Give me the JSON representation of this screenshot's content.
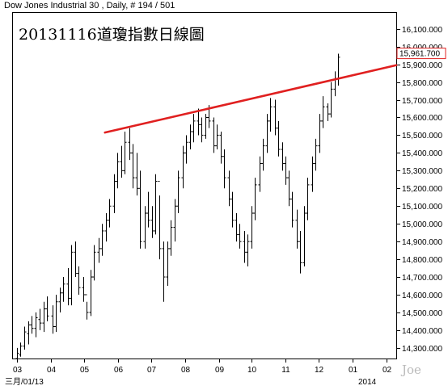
{
  "chart_data": {
    "type": "ohlc",
    "header": "Dow Jones Industrial 30 , Daily, # 194 / 501",
    "title": "20131116道瓊指數日線圖",
    "last_value_label": "15,961.700",
    "last_value": 15961.7,
    "watermark": "Joe",
    "y_axis": {
      "position": "right",
      "min": 14240,
      "max": 16190,
      "ticks": [
        14300,
        14400,
        14500,
        14600,
        14700,
        14800,
        14900,
        15000,
        15100,
        15200,
        15300,
        15400,
        15500,
        15600,
        15700,
        15800,
        15900,
        16000,
        16100
      ],
      "tick_labels": [
        "14,300.000",
        "14,400.000",
        "14,500.000",
        "14,600.000",
        "14,700.000",
        "14,800.000",
        "14,900.000",
        "15,000.000",
        "15,100.000",
        "15,200.000",
        "15,300.000",
        "15,400.000",
        "15,500.000",
        "15,600.000",
        "15,700.000",
        "15,800.000",
        "15,900.000",
        "16,000.000",
        "16,100.000"
      ]
    },
    "x_axis": {
      "tick_labels": [
        "03",
        "04",
        "05",
        "06",
        "07",
        "08",
        "09",
        "10",
        "11",
        "12",
        "01",
        "02"
      ],
      "tick_dates": [
        "2013-03-01",
        "2013-04-01",
        "2013-05-01",
        "2013-06-01",
        "2013-07-01",
        "2013-08-01",
        "2013-09-01",
        "2013-10-01",
        "2013-11-01",
        "2013-12-01",
        "2014-01-01",
        "2014-02-01"
      ],
      "start_label": "三月/01/13",
      "year_label": "2014",
      "range": [
        "2013-02-25",
        "2014-02-10"
      ]
    },
    "series": [
      {
        "type": "ohlc",
        "points": [
          [
            "2013-03-01",
            14240,
            14300,
            14240,
            14270
          ],
          [
            "2013-03-04",
            14260,
            14330,
            14250,
            14310
          ],
          [
            "2013-03-07",
            14310,
            14420,
            14290,
            14390
          ],
          [
            "2013-03-11",
            14380,
            14450,
            14320,
            14430
          ],
          [
            "2013-03-14",
            14430,
            14480,
            14380,
            14410
          ],
          [
            "2013-03-18",
            14410,
            14500,
            14360,
            14470
          ],
          [
            "2013-03-21",
            14460,
            14520,
            14400,
            14440
          ],
          [
            "2013-03-25",
            14440,
            14560,
            14390,
            14520
          ],
          [
            "2013-03-28",
            14520,
            14590,
            14450,
            14480
          ],
          [
            "2013-04-02",
            14480,
            14540,
            14380,
            14420
          ],
          [
            "2013-04-05",
            14420,
            14600,
            14390,
            14560
          ],
          [
            "2013-04-09",
            14560,
            14640,
            14500,
            14610
          ],
          [
            "2013-04-12",
            14610,
            14700,
            14560,
            14660
          ],
          [
            "2013-04-16",
            14660,
            14750,
            14540,
            14580
          ],
          [
            "2013-04-19",
            14580,
            14880,
            14540,
            14840
          ],
          [
            "2013-04-23",
            14840,
            14900,
            14700,
            14720
          ],
          [
            "2013-04-26",
            14720,
            14760,
            14600,
            14640
          ],
          [
            "2013-04-30",
            14640,
            14700,
            14560,
            14600
          ],
          [
            "2013-05-03",
            14600,
            14560,
            14460,
            14500
          ],
          [
            "2013-05-07",
            14500,
            14740,
            14480,
            14700
          ],
          [
            "2013-05-10",
            14700,
            14880,
            14680,
            14840
          ],
          [
            "2013-05-14",
            14840,
            14920,
            14780,
            14860
          ],
          [
            "2013-05-17",
            14860,
            15000,
            14820,
            14960
          ],
          [
            "2013-05-21",
            14960,
            15060,
            14900,
            15020
          ],
          [
            "2013-05-24",
            15020,
            15140,
            14980,
            15100
          ],
          [
            "2013-05-28",
            15100,
            15280,
            15060,
            15240
          ],
          [
            "2013-05-31",
            15240,
            15400,
            15200,
            15350
          ],
          [
            "2013-06-04",
            15350,
            15440,
            15260,
            15300
          ],
          [
            "2013-06-07",
            15300,
            15520,
            15280,
            15460
          ],
          [
            "2013-06-11",
            15460,
            15540,
            15360,
            15400
          ],
          [
            "2013-06-14",
            15400,
            15450,
            15200,
            15260
          ],
          [
            "2013-06-18",
            15260,
            15400,
            15160,
            15200
          ],
          [
            "2013-06-21",
            15200,
            15300,
            14860,
            14900
          ],
          [
            "2013-06-25",
            14900,
            15100,
            14860,
            15060
          ],
          [
            "2013-06-28",
            15060,
            15180,
            14980,
            15020
          ],
          [
            "2013-07-02",
            15020,
            15100,
            14920,
            14960
          ],
          [
            "2013-07-05",
            14960,
            15280,
            14940,
            15240
          ],
          [
            "2013-07-09",
            15240,
            15160,
            14800,
            14860
          ],
          [
            "2013-07-12",
            14860,
            14900,
            14560,
            14700
          ],
          [
            "2013-07-16",
            14700,
            14900,
            14650,
            14860
          ],
          [
            "2013-07-19",
            14860,
            15020,
            14820,
            14980
          ],
          [
            "2013-07-23",
            14980,
            15140,
            14900,
            15100
          ],
          [
            "2013-07-26",
            15100,
            15300,
            15060,
            15260
          ],
          [
            "2013-07-30",
            15260,
            15440,
            15200,
            15400
          ],
          [
            "2013-08-02",
            15400,
            15500,
            15340,
            15460
          ],
          [
            "2013-08-06",
            15460,
            15560,
            15420,
            15520
          ],
          [
            "2013-08-09",
            15520,
            15620,
            15460,
            15580
          ],
          [
            "2013-08-13",
            15580,
            15650,
            15500,
            15560
          ],
          [
            "2013-08-16",
            15560,
            15600,
            15460,
            15500
          ],
          [
            "2013-08-20",
            15500,
            15620,
            15480,
            15600
          ],
          [
            "2013-08-23",
            15600,
            15670,
            15540,
            15580
          ],
          [
            "2013-08-27",
            15580,
            15600,
            15400,
            15440
          ],
          [
            "2013-08-30",
            15440,
            15560,
            15420,
            15500
          ],
          [
            "2013-09-03",
            15500,
            15520,
            15340,
            15380
          ],
          [
            "2013-09-06",
            15380,
            15420,
            15200,
            15260
          ],
          [
            "2013-09-10",
            15260,
            15300,
            15100,
            15140
          ],
          [
            "2013-09-13",
            15140,
            15180,
            14980,
            15020
          ],
          [
            "2013-09-17",
            15020,
            15060,
            14900,
            14940
          ],
          [
            "2013-09-20",
            14940,
            15000,
            14860,
            14900
          ],
          [
            "2013-09-24",
            14900,
            14960,
            14780,
            14840
          ],
          [
            "2013-09-27",
            14840,
            14940,
            14760,
            14900
          ],
          [
            "2013-10-01",
            14900,
            15100,
            14860,
            15060
          ],
          [
            "2013-10-04",
            15060,
            15260,
            15020,
            15220
          ],
          [
            "2013-10-08",
            15220,
            15380,
            15180,
            15340
          ],
          [
            "2013-10-11",
            15340,
            15480,
            15300,
            15440
          ],
          [
            "2013-10-15",
            15440,
            15620,
            15400,
            15580
          ],
          [
            "2013-10-18",
            15580,
            15710,
            15520,
            15660
          ],
          [
            "2013-10-22",
            15660,
            15700,
            15500,
            15540
          ],
          [
            "2013-10-25",
            15540,
            15580,
            15380,
            15420
          ],
          [
            "2013-10-29",
            15420,
            15460,
            15300,
            15340
          ],
          [
            "2013-11-01",
            15340,
            15380,
            15220,
            15260
          ],
          [
            "2013-11-04",
            15260,
            15300,
            15100,
            15140
          ],
          [
            "2013-11-07",
            15140,
            15180,
            14980,
            15020
          ],
          [
            "2013-11-11",
            15020,
            15080,
            14860,
            14900
          ],
          [
            "2013-11-14",
            14900,
            14960,
            14720,
            14780
          ],
          [
            "2013-11-18",
            14780,
            15100,
            14760,
            15060
          ],
          [
            "2013-11-21",
            15060,
            15260,
            15020,
            15220
          ],
          [
            "2013-11-25",
            15220,
            15380,
            15180,
            15340
          ],
          [
            "2013-11-28",
            15340,
            15480,
            15300,
            15440
          ],
          [
            "2013-12-02",
            15440,
            15620,
            15400,
            15580
          ],
          [
            "2013-12-05",
            15580,
            15720,
            15540,
            15660
          ],
          [
            "2013-12-09",
            15660,
            15680,
            15580,
            15620
          ],
          [
            "2013-12-12",
            15620,
            15800,
            15600,
            15760
          ],
          [
            "2013-12-16",
            15760,
            15860,
            15720,
            15820
          ],
          [
            "2013-12-19",
            15820,
            15960,
            15780,
            15940
          ]
        ]
      },
      {
        "type": "trendline",
        "name": "",
        "color": "#e02020",
        "start": [
          "2013-05-20",
          15515
        ],
        "end": [
          "2014-02-10",
          15895
        ]
      }
    ],
    "grid": false,
    "legend": "none"
  }
}
